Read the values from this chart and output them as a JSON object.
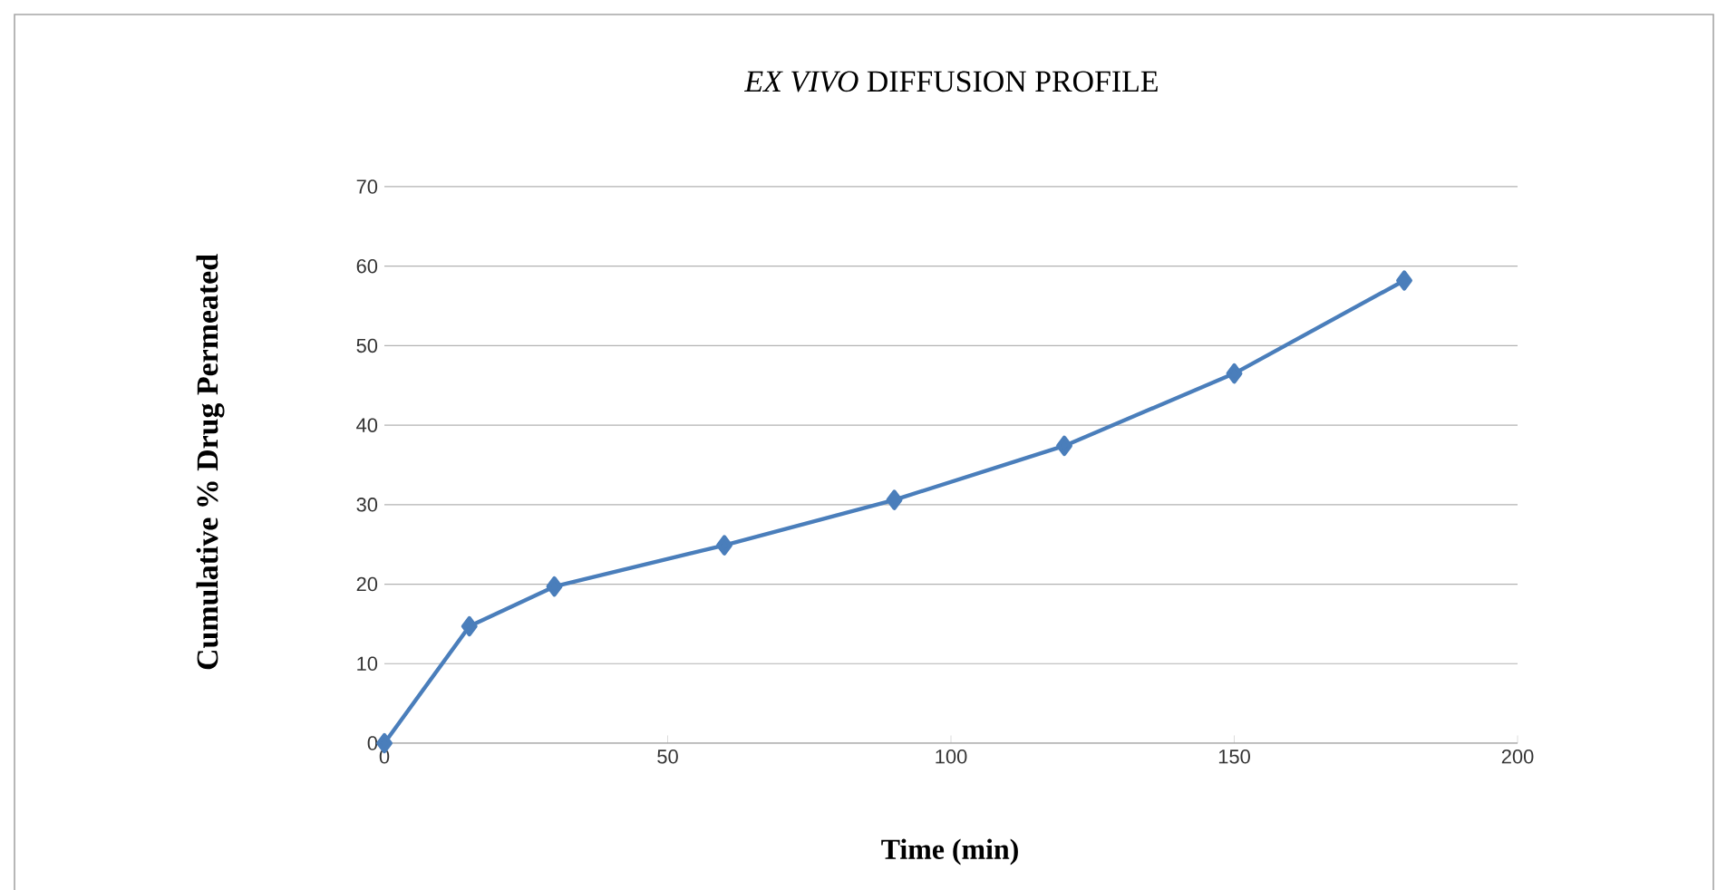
{
  "chart_data": {
    "type": "line",
    "title": "*EX VIVO* DIFFUSION PROFILE",
    "xlabel": "Time (min)",
    "ylabel": "Cumulative % Drug Permeated",
    "x": [
      0,
      15,
      30,
      60,
      90,
      120,
      150,
      180
    ],
    "series": [
      {
        "color": "#4a7ebb",
        "values": [
          0,
          14.7,
          19.7,
          24.9,
          30.6,
          37.4,
          46.5,
          58.2
        ]
      }
    ],
    "xlim": [
      0,
      200
    ],
    "ylim": [
      0,
      70
    ],
    "xticks": [
      0,
      50,
      100,
      150,
      200
    ],
    "yticks": [
      0,
      10,
      20,
      30,
      40,
      50,
      60,
      70
    ],
    "grid": "y",
    "marker": "diamond",
    "line_style": "solid"
  }
}
